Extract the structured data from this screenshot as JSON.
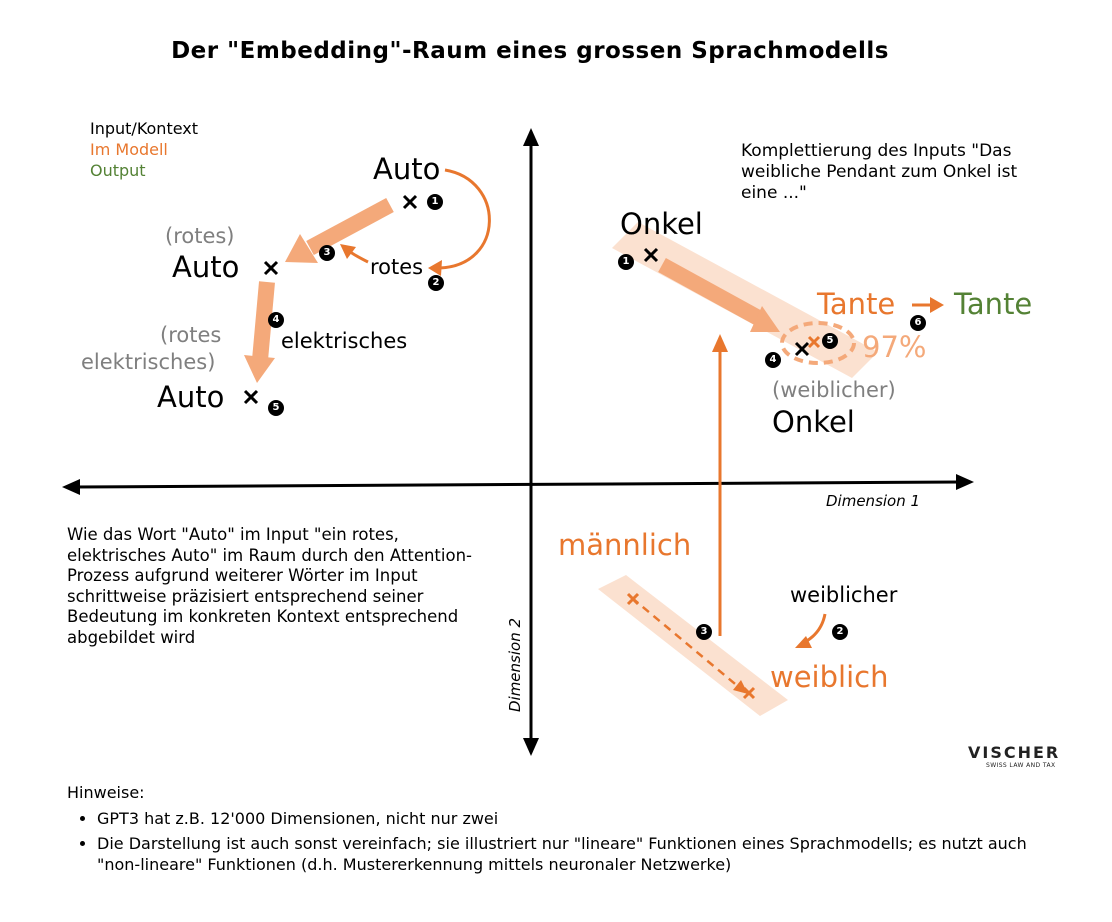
{
  "title": "Der \"Embedding\"-Raum eines grossen Sprachmodells",
  "legend": {
    "input": "Input/Kontext",
    "model": "Im Modell",
    "output": "Output"
  },
  "colors": {
    "orange": "#e8772e",
    "light_orange": "#f4a97a",
    "band": "#fbe1d0",
    "green": "#548235",
    "grey": "#7f7f7f"
  },
  "left_example": {
    "auto_1": "Auto",
    "rotes_word": "rotes",
    "rotes_context": "(rotes)",
    "auto_2": "Auto",
    "elektrisches_word": "elektrisches",
    "rotes_elektrisches_line1": "(rotes",
    "rotes_elektrisches_line2": "elektrisches)",
    "auto_3": "Auto",
    "step_1": "1",
    "step_2": "2",
    "step_3": "3",
    "step_4": "4",
    "step_5": "5",
    "marker": "×"
  },
  "right_example": {
    "completion_text": "Komplettierung des Inputs \"Das weibliche Pendant zum Onkel ist eine ...\"",
    "onkel": "Onkel",
    "weiblicher_onkel_line1": "(weiblicher)",
    "weiblicher_onkel_line2": "Onkel",
    "tante_model": "Tante",
    "tante_output": "Tante",
    "probability": "97%",
    "step_1": "1",
    "step_4": "4",
    "step_5": "5",
    "step_6": "6"
  },
  "gender_example": {
    "maennlich": "männlich",
    "weiblich": "weiblich",
    "weiblicher_word": "weiblicher",
    "step_2": "2",
    "step_3": "3"
  },
  "axes": {
    "dimension_1": "Dimension 1",
    "dimension_2": "Dimension 2"
  },
  "description": "Wie das Wort \"Auto\" im Input \"ein rotes, elektrisches Auto\" im Raum durch den Attention-Prozess aufgrund weiterer Wörter im Input schrittweise präzisiert entsprechend seiner Bedeutung im konkreten Kontext entsprechend abgebildet wird",
  "notes": {
    "heading": "Hinweise:",
    "items": [
      "GPT3 hat z.B. 12'000 Dimensionen, nicht nur zwei",
      "Die Darstellung ist auch sonst vereinfach; sie illustriert nur \"lineare\" Funktionen eines Sprachmodells; es nutzt auch \"non-lineare\" Funktionen (d.h. Mustererkennung mittels neuronaler Netzwerke)"
    ]
  },
  "logo": {
    "name": "VISCHER",
    "tagline": "SWISS LAW AND TAX"
  }
}
